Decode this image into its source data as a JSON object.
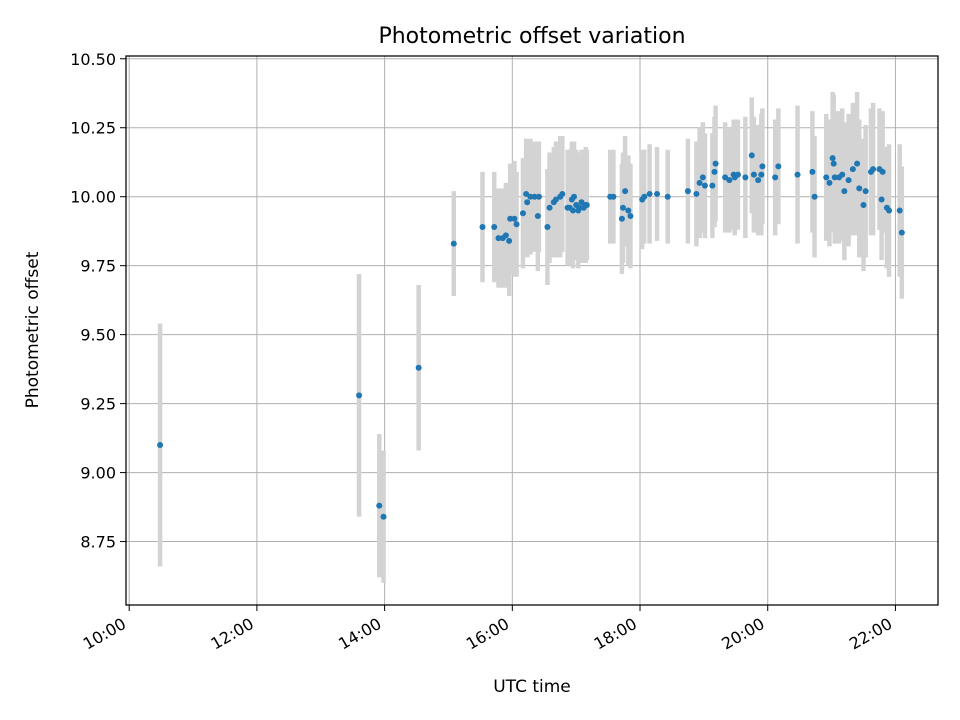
{
  "chart_data": {
    "type": "scatter",
    "title": "Photometric offset variation",
    "xlabel": "UTC time",
    "ylabel": "Photometric offset",
    "grid": true,
    "legend": "none",
    "xlim": [
      "09:57",
      "22:40"
    ],
    "ylim": [
      8.52,
      10.51
    ],
    "xticks": [
      "10:00",
      "12:00",
      "14:00",
      "16:00",
      "18:00",
      "20:00",
      "22:00"
    ],
    "yticks": [
      8.75,
      9.0,
      9.25,
      9.5,
      9.75,
      10.0,
      10.25,
      10.5
    ],
    "ytick_labels": [
      "8.75",
      "9.00",
      "9.25",
      "9.50",
      "9.75",
      "10.00",
      "10.25",
      "10.50"
    ],
    "colors": {
      "marker": "#1f77b4",
      "errorbar": "#d3d3d3",
      "grid": "#b0b0b0"
    },
    "series": [
      {
        "x": [
          "10:29",
          "13:36",
          "13:55",
          "13:59",
          "14:32",
          "15:05",
          "15:32",
          "15:43",
          "15:47",
          "15:51",
          "15:54",
          "15:57",
          "15:58",
          "16:02",
          "16:04",
          "16:10",
          "16:13",
          "16:14",
          "16:17",
          "16:21",
          "16:24",
          "16:25",
          "16:33",
          "16:35",
          "16:39",
          "16:41",
          "16:45",
          "16:47",
          "16:52",
          "16:54",
          "16:56",
          "16:57",
          "16:58",
          "17:00",
          "17:02",
          "17:03",
          "17:05",
          "17:07",
          "17:09",
          "17:10",
          "17:32",
          "17:35",
          "17:43",
          "17:44",
          "17:46",
          "17:49",
          "17:51",
          "18:02",
          "18:04",
          "18:09",
          "18:16",
          "18:26",
          "18:45",
          "18:53",
          "18:56",
          "18:59",
          "19:01",
          "19:08",
          "19:10",
          "19:11",
          "19:20",
          "19:24",
          "19:28",
          "19:29",
          "19:32",
          "19:39",
          "19:45",
          "19:47",
          "19:51",
          "19:54",
          "19:55",
          "20:07",
          "20:10",
          "20:28",
          "20:42",
          "20:44",
          "20:55",
          "20:58",
          "21:01",
          "21:02",
          "21:03",
          "21:07",
          "21:10",
          "21:12",
          "21:16",
          "21:20",
          "21:24",
          "21:26",
          "21:30",
          "21:32",
          "21:37",
          "21:39",
          "21:45",
          "21:47",
          "21:48",
          "21:52",
          "21:54",
          "22:04",
          "22:06"
        ],
        "y": [
          9.1,
          9.28,
          8.88,
          8.84,
          9.38,
          9.83,
          9.89,
          9.89,
          9.85,
          9.85,
          9.86,
          9.84,
          9.92,
          9.92,
          9.9,
          9.94,
          10.01,
          9.98,
          10.0,
          10.0,
          9.93,
          10.0,
          9.89,
          9.96,
          9.98,
          9.99,
          10.0,
          10.01,
          9.96,
          9.96,
          9.99,
          9.95,
          10.0,
          9.97,
          9.95,
          9.96,
          9.98,
          9.96,
          9.97,
          9.97,
          10.0,
          10.0,
          9.92,
          9.96,
          10.02,
          9.95,
          9.93,
          9.99,
          10.0,
          10.01,
          10.01,
          10.0,
          10.02,
          10.01,
          10.05,
          10.07,
          10.04,
          10.04,
          10.09,
          10.12,
          10.07,
          10.06,
          10.08,
          10.07,
          10.08,
          10.07,
          10.15,
          10.08,
          10.06,
          10.08,
          10.11,
          10.07,
          10.11,
          10.08,
          10.09,
          10.0,
          10.07,
          10.05,
          10.14,
          10.12,
          10.07,
          10.07,
          10.08,
          10.02,
          10.06,
          10.1,
          10.12,
          10.03,
          9.97,
          10.02,
          10.09,
          10.1,
          10.1,
          9.99,
          10.09,
          9.96,
          9.95,
          9.95,
          9.87
        ],
        "err": [
          0.44,
          0.44,
          0.26,
          0.24,
          0.3,
          0.19,
          0.2,
          0.2,
          0.18,
          0.18,
          0.19,
          0.2,
          0.2,
          0.21,
          0.19,
          0.2,
          0.2,
          0.2,
          0.21,
          0.2,
          0.2,
          0.2,
          0.21,
          0.2,
          0.2,
          0.21,
          0.22,
          0.21,
          0.21,
          0.21,
          0.21,
          0.21,
          0.2,
          0.2,
          0.21,
          0.2,
          0.19,
          0.2,
          0.21,
          0.2,
          0.17,
          0.17,
          0.2,
          0.2,
          0.2,
          0.2,
          0.19,
          0.18,
          0.17,
          0.18,
          0.17,
          0.17,
          0.19,
          0.19,
          0.2,
          0.2,
          0.19,
          0.19,
          0.2,
          0.21,
          0.2,
          0.19,
          0.2,
          0.21,
          0.2,
          0.22,
          0.21,
          0.21,
          0.2,
          0.22,
          0.21,
          0.21,
          0.21,
          0.25,
          0.22,
          0.22,
          0.23,
          0.23,
          0.24,
          0.25,
          0.24,
          0.24,
          0.24,
          0.25,
          0.24,
          0.24,
          0.26,
          0.25,
          0.24,
          0.24,
          0.23,
          0.24,
          0.22,
          0.22,
          0.22,
          0.22,
          0.24,
          0.24,
          0.24
        ]
      }
    ]
  }
}
